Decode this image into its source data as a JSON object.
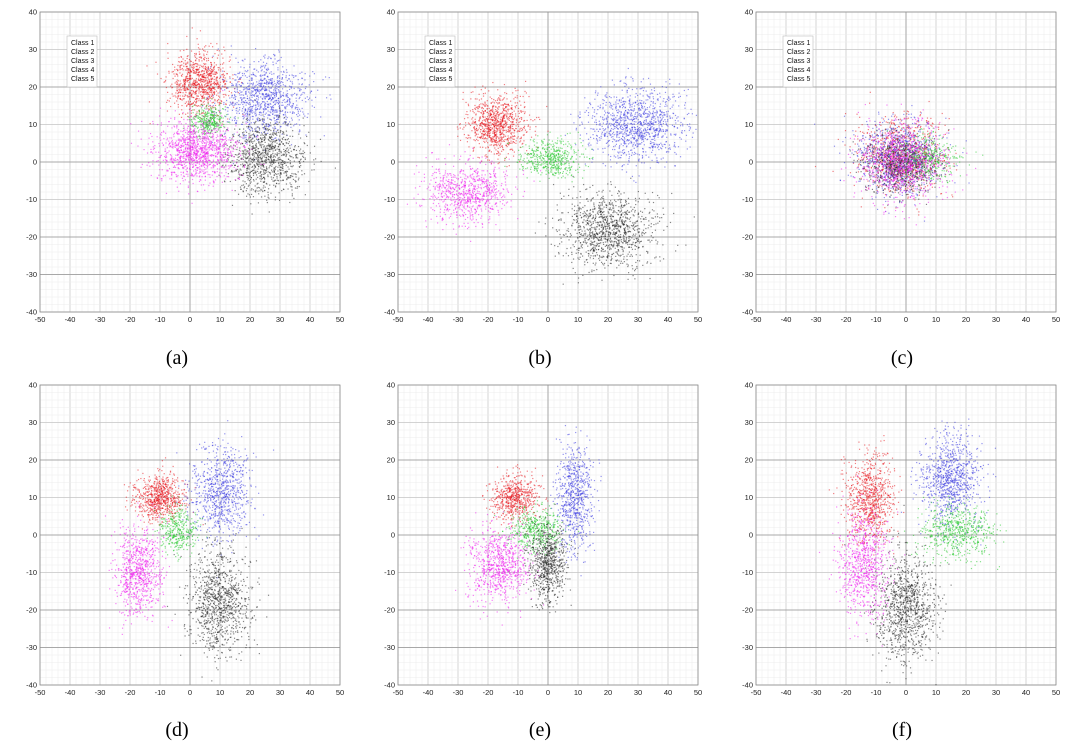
{
  "figure": {
    "x_ticks": [
      "-50",
      "-40",
      "-30",
      "-20",
      "-10",
      "0",
      "10",
      "20",
      "30",
      "40",
      "50"
    ],
    "y_ticks": [
      "40",
      "30",
      "20",
      "10",
      "0",
      "-10",
      "-20",
      "-30",
      "-40"
    ]
  },
  "chart_data": [
    {
      "type": "scatter",
      "caption": "(a)",
      "xlim": [
        -50,
        50
      ],
      "ylim": [
        -40,
        40
      ],
      "grid": true,
      "legend": {
        "placement": "top-left",
        "entries": [
          "Class 1",
          "Class 2",
          "Class 3",
          "Class 4",
          "Class 5"
        ]
      },
      "series": [
        {
          "name": "Class 1",
          "color": "#e8141c",
          "center": [
            3,
            21
          ],
          "spread": [
            5,
            4
          ],
          "n": 900
        },
        {
          "name": "Class 2",
          "color": "#3a3ae0",
          "center": [
            25,
            17
          ],
          "spread": [
            7,
            5
          ],
          "n": 1000
        },
        {
          "name": "Class 3",
          "color": "#22c82a",
          "center": [
            6,
            11
          ],
          "spread": [
            3,
            2
          ],
          "n": 350
        },
        {
          "name": "Class 4",
          "color": "#222222",
          "center": [
            25,
            1
          ],
          "spread": [
            6,
            5
          ],
          "n": 1000
        },
        {
          "name": "Class 5",
          "color": "#ee1cee",
          "center": [
            2,
            3
          ],
          "spread": [
            7,
            4
          ],
          "n": 1200
        }
      ]
    },
    {
      "type": "scatter",
      "caption": "(b)",
      "xlim": [
        -50,
        50
      ],
      "ylim": [
        -40,
        40
      ],
      "grid": true,
      "legend": {
        "placement": "top-left",
        "entries": [
          "Class 1",
          "Class 2",
          "Class 3",
          "Class 4",
          "Class 5"
        ]
      },
      "series": [
        {
          "name": "Class 1",
          "color": "#e8141c",
          "center": [
            -17,
            10
          ],
          "spread": [
            5,
            4
          ],
          "n": 900
        },
        {
          "name": "Class 2",
          "color": "#3a3ae0",
          "center": [
            30,
            10
          ],
          "spread": [
            8,
            5
          ],
          "n": 1100
        },
        {
          "name": "Class 3",
          "color": "#22c82a",
          "center": [
            1,
            1
          ],
          "spread": [
            5,
            2.5
          ],
          "n": 500
        },
        {
          "name": "Class 4",
          "color": "#222222",
          "center": [
            20,
            -18
          ],
          "spread": [
            8,
            5
          ],
          "n": 1100
        },
        {
          "name": "Class 5",
          "color": "#ee1cee",
          "center": [
            -27,
            -8
          ],
          "spread": [
            7,
            4
          ],
          "n": 800
        }
      ]
    },
    {
      "type": "scatter",
      "caption": "(c)",
      "xlim": [
        -50,
        50
      ],
      "ylim": [
        -40,
        40
      ],
      "grid": true,
      "legend": {
        "placement": "top-left",
        "entries": [
          "Class 1",
          "Class 2",
          "Class 3",
          "Class 4",
          "Class 5"
        ]
      },
      "series": [
        {
          "name": "Class 1",
          "color": "#e8141c",
          "center": [
            -2,
            2
          ],
          "spread": [
            7,
            5
          ],
          "n": 800
        },
        {
          "name": "Class 2",
          "color": "#3a3ae0",
          "center": [
            -3,
            1
          ],
          "spread": [
            7,
            5
          ],
          "n": 800
        },
        {
          "name": "Class 3",
          "color": "#22c82a",
          "center": [
            7,
            1
          ],
          "spread": [
            5,
            3
          ],
          "n": 400
        },
        {
          "name": "Class 4",
          "color": "#222222",
          "center": [
            -2,
            -1
          ],
          "spread": [
            6,
            4
          ],
          "n": 700
        },
        {
          "name": "Class 5",
          "color": "#ee1cee",
          "center": [
            -1,
            0
          ],
          "spread": [
            7,
            5
          ],
          "n": 900
        }
      ]
    },
    {
      "type": "scatter",
      "caption": "(d)",
      "xlim": [
        -50,
        50
      ],
      "ylim": [
        -40,
        40
      ],
      "grid": true,
      "legend": {
        "placement": "none",
        "entries": []
      },
      "series": [
        {
          "name": "Class 1",
          "color": "#e8141c",
          "center": [
            -10,
            10
          ],
          "spread": [
            4,
            3
          ],
          "n": 700
        },
        {
          "name": "Class 2",
          "color": "#3a3ae0",
          "center": [
            10,
            11
          ],
          "spread": [
            5,
            6
          ],
          "n": 800
        },
        {
          "name": "Class 3",
          "color": "#22c82a",
          "center": [
            -4,
            1
          ],
          "spread": [
            3,
            3
          ],
          "n": 350
        },
        {
          "name": "Class 4",
          "color": "#222222",
          "center": [
            10,
            -18
          ],
          "spread": [
            5,
            7
          ],
          "n": 1000
        },
        {
          "name": "Class 5",
          "color": "#ee1cee",
          "center": [
            -17,
            -10
          ],
          "spread": [
            4,
            6
          ],
          "n": 800
        }
      ]
    },
    {
      "type": "scatter",
      "caption": "(e)",
      "xlim": [
        -50,
        50
      ],
      "ylim": [
        -40,
        40
      ],
      "grid": true,
      "legend": {
        "placement": "none",
        "entries": []
      },
      "series": [
        {
          "name": "Class 1",
          "color": "#e8141c",
          "center": [
            -11,
            10
          ],
          "spread": [
            4,
            3
          ],
          "n": 600
        },
        {
          "name": "Class 2",
          "color": "#3a3ae0",
          "center": [
            9,
            10
          ],
          "spread": [
            3,
            7
          ],
          "n": 700
        },
        {
          "name": "Class 3",
          "color": "#22c82a",
          "center": [
            -4,
            1
          ],
          "spread": [
            4,
            3
          ],
          "n": 450
        },
        {
          "name": "Class 4",
          "color": "#222222",
          "center": [
            0,
            -8
          ],
          "spread": [
            3,
            5
          ],
          "n": 700
        },
        {
          "name": "Class 5",
          "color": "#ee1cee",
          "center": [
            -16,
            -8
          ],
          "spread": [
            5,
            5
          ],
          "n": 800
        }
      ]
    },
    {
      "type": "scatter",
      "caption": "(f)",
      "xlim": [
        -50,
        50
      ],
      "ylim": [
        -40,
        40
      ],
      "grid": true,
      "legend": {
        "placement": "none",
        "entries": []
      },
      "series": [
        {
          "name": "Class 1",
          "color": "#e8141c",
          "center": [
            -12,
            10
          ],
          "spread": [
            4,
            6
          ],
          "n": 800
        },
        {
          "name": "Class 2",
          "color": "#3a3ae0",
          "center": [
            15,
            15
          ],
          "spread": [
            5,
            6
          ],
          "n": 900
        },
        {
          "name": "Class 3",
          "color": "#22c82a",
          "center": [
            17,
            1
          ],
          "spread": [
            6,
            3.5
          ],
          "n": 600
        },
        {
          "name": "Class 4",
          "color": "#222222",
          "center": [
            0,
            -19
          ],
          "spread": [
            5,
            7
          ],
          "n": 1000
        },
        {
          "name": "Class 5",
          "color": "#ee1cee",
          "center": [
            -14,
            -8
          ],
          "spread": [
            4,
            7
          ],
          "n": 800
        }
      ]
    }
  ]
}
